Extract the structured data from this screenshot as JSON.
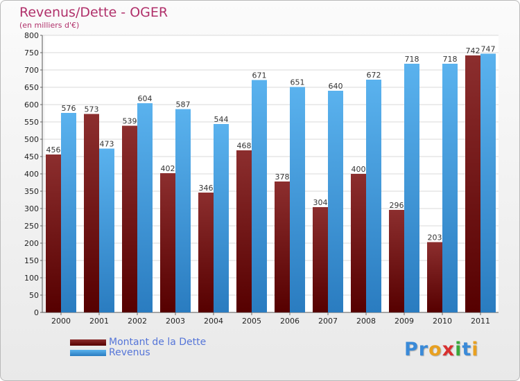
{
  "chart_data": {
    "type": "bar",
    "title": "Revenus/Dette - OGER",
    "subtitle": "(en milliers d'€)",
    "categories": [
      "2000",
      "2001",
      "2002",
      "2003",
      "2004",
      "2005",
      "2006",
      "2007",
      "2008",
      "2009",
      "2010",
      "2011"
    ],
    "series": [
      {
        "name": "Montant de la Dette",
        "color": "#7a1e1e",
        "values": [
          456,
          573,
          539,
          402,
          346,
          468,
          378,
          304,
          400,
          296,
          203,
          742
        ]
      },
      {
        "name": "Revenus",
        "color": "#4aa3e8",
        "values": [
          576,
          473,
          604,
          587,
          544,
          671,
          651,
          640,
          672,
          718,
          718,
          747
        ]
      }
    ],
    "ylim": [
      0,
      800
    ],
    "yticks": [
      0,
      50,
      100,
      150,
      200,
      250,
      300,
      350,
      400,
      450,
      500,
      550,
      600,
      650,
      700,
      750,
      800
    ],
    "grid": true,
    "legend": "bottom-left"
  },
  "branding": {
    "letters": [
      {
        "ch": "P",
        "color": "#3a8ad8"
      },
      {
        "ch": "r",
        "color": "#3a8ad8"
      },
      {
        "ch": "o",
        "color": "#e8a020"
      },
      {
        "ch": "x",
        "color": "#d83030"
      },
      {
        "ch": "i",
        "color": "#3aa83a"
      },
      {
        "ch": "t",
        "color": "#3a8ad8"
      },
      {
        "ch": "i",
        "color": "#e8a020"
      }
    ]
  }
}
